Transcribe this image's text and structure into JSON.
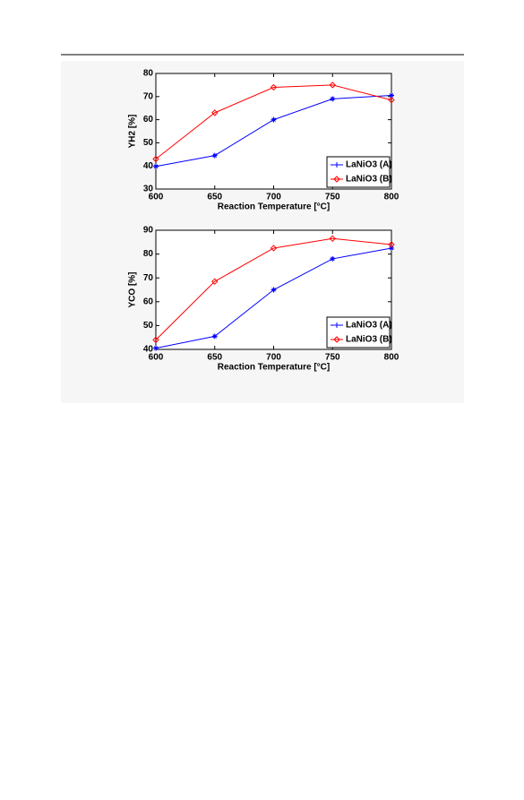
{
  "chart_data": [
    {
      "type": "line",
      "xlabel": "Reaction Temperature [°C]",
      "ylabel": "YH2 [%]",
      "x": [
        600,
        650,
        700,
        750,
        800
      ],
      "series": [
        {
          "name": "LaNiO3 (A)",
          "color": "#0000ff",
          "marker": "asterisk",
          "values": [
            39.8,
            44.5,
            60,
            69,
            70.5
          ]
        },
        {
          "name": "LaNiO3 (B)",
          "color": "#ff0000",
          "marker": "diamond",
          "values": [
            43,
            63,
            74,
            75,
            68.5
          ]
        }
      ],
      "xlim": [
        600,
        800
      ],
      "xticks": [
        600,
        650,
        700,
        750,
        800
      ],
      "ylim": [
        30,
        80
      ],
      "yticks": [
        30,
        40,
        50,
        60,
        70,
        80
      ],
      "legend": "lower right"
    },
    {
      "type": "line",
      "xlabel": "Reaction Temperature [°C]",
      "ylabel": "YCO [%]",
      "x": [
        600,
        650,
        700,
        750,
        800
      ],
      "series": [
        {
          "name": "LaNiO3 (A)",
          "color": "#0000ff",
          "marker": "asterisk",
          "values": [
            40.5,
            45.5,
            65,
            78,
            82.5
          ]
        },
        {
          "name": "LaNiO3 (B)",
          "color": "#ff0000",
          "marker": "diamond",
          "values": [
            44,
            68.5,
            82.5,
            86.5,
            84
          ]
        }
      ],
      "xlim": [
        600,
        800
      ],
      "xticks": [
        600,
        650,
        700,
        750,
        800
      ],
      "ylim": [
        40,
        90
      ],
      "yticks": [
        40,
        50,
        60,
        70,
        80,
        90
      ],
      "legend": "lower right"
    }
  ]
}
